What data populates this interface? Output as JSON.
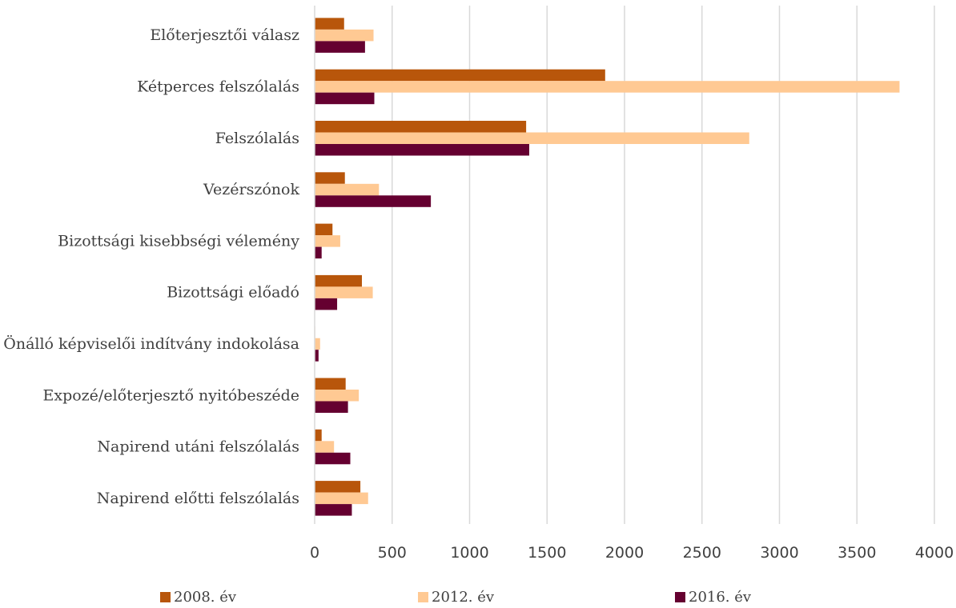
{
  "chart_data": {
    "type": "bar",
    "orientation": "horizontal",
    "categories": [
      "Napirend előtti felszólalás",
      "Napirend utáni felszólalás",
      "Expozé/előterjesztő nyitóbeszéde",
      "Önálló képviselői indítvány indokolása",
      "Bizottsági előadó",
      "Bizottsági kisebbségi vélemény",
      "Vezérszónok",
      "Felszólalás",
      "Kétperces felszólalás",
      "Előterjesztői válasz"
    ],
    "series": [
      {
        "name": "2008. év",
        "color": "#B8560B",
        "values": [
          295,
          45,
          200,
          3,
          305,
          115,
          195,
          1365,
          1875,
          190
        ]
      },
      {
        "name": "2012. év",
        "color": "#FFC993",
        "values": [
          345,
          125,
          285,
          35,
          375,
          165,
          415,
          2805,
          3775,
          380
        ]
      },
      {
        "name": "2016. év",
        "color": "#650030",
        "values": [
          240,
          230,
          215,
          25,
          145,
          45,
          750,
          1385,
          385,
          325
        ]
      }
    ],
    "xlim": [
      0,
      4000
    ],
    "ticks": [
      "0",
      "500",
      "1000",
      "1500",
      "2000",
      "2500",
      "3000",
      "3500",
      "4000"
    ],
    "grid": true,
    "legend_position": "bottom",
    "title": "",
    "xlabel": "",
    "ylabel": ""
  }
}
